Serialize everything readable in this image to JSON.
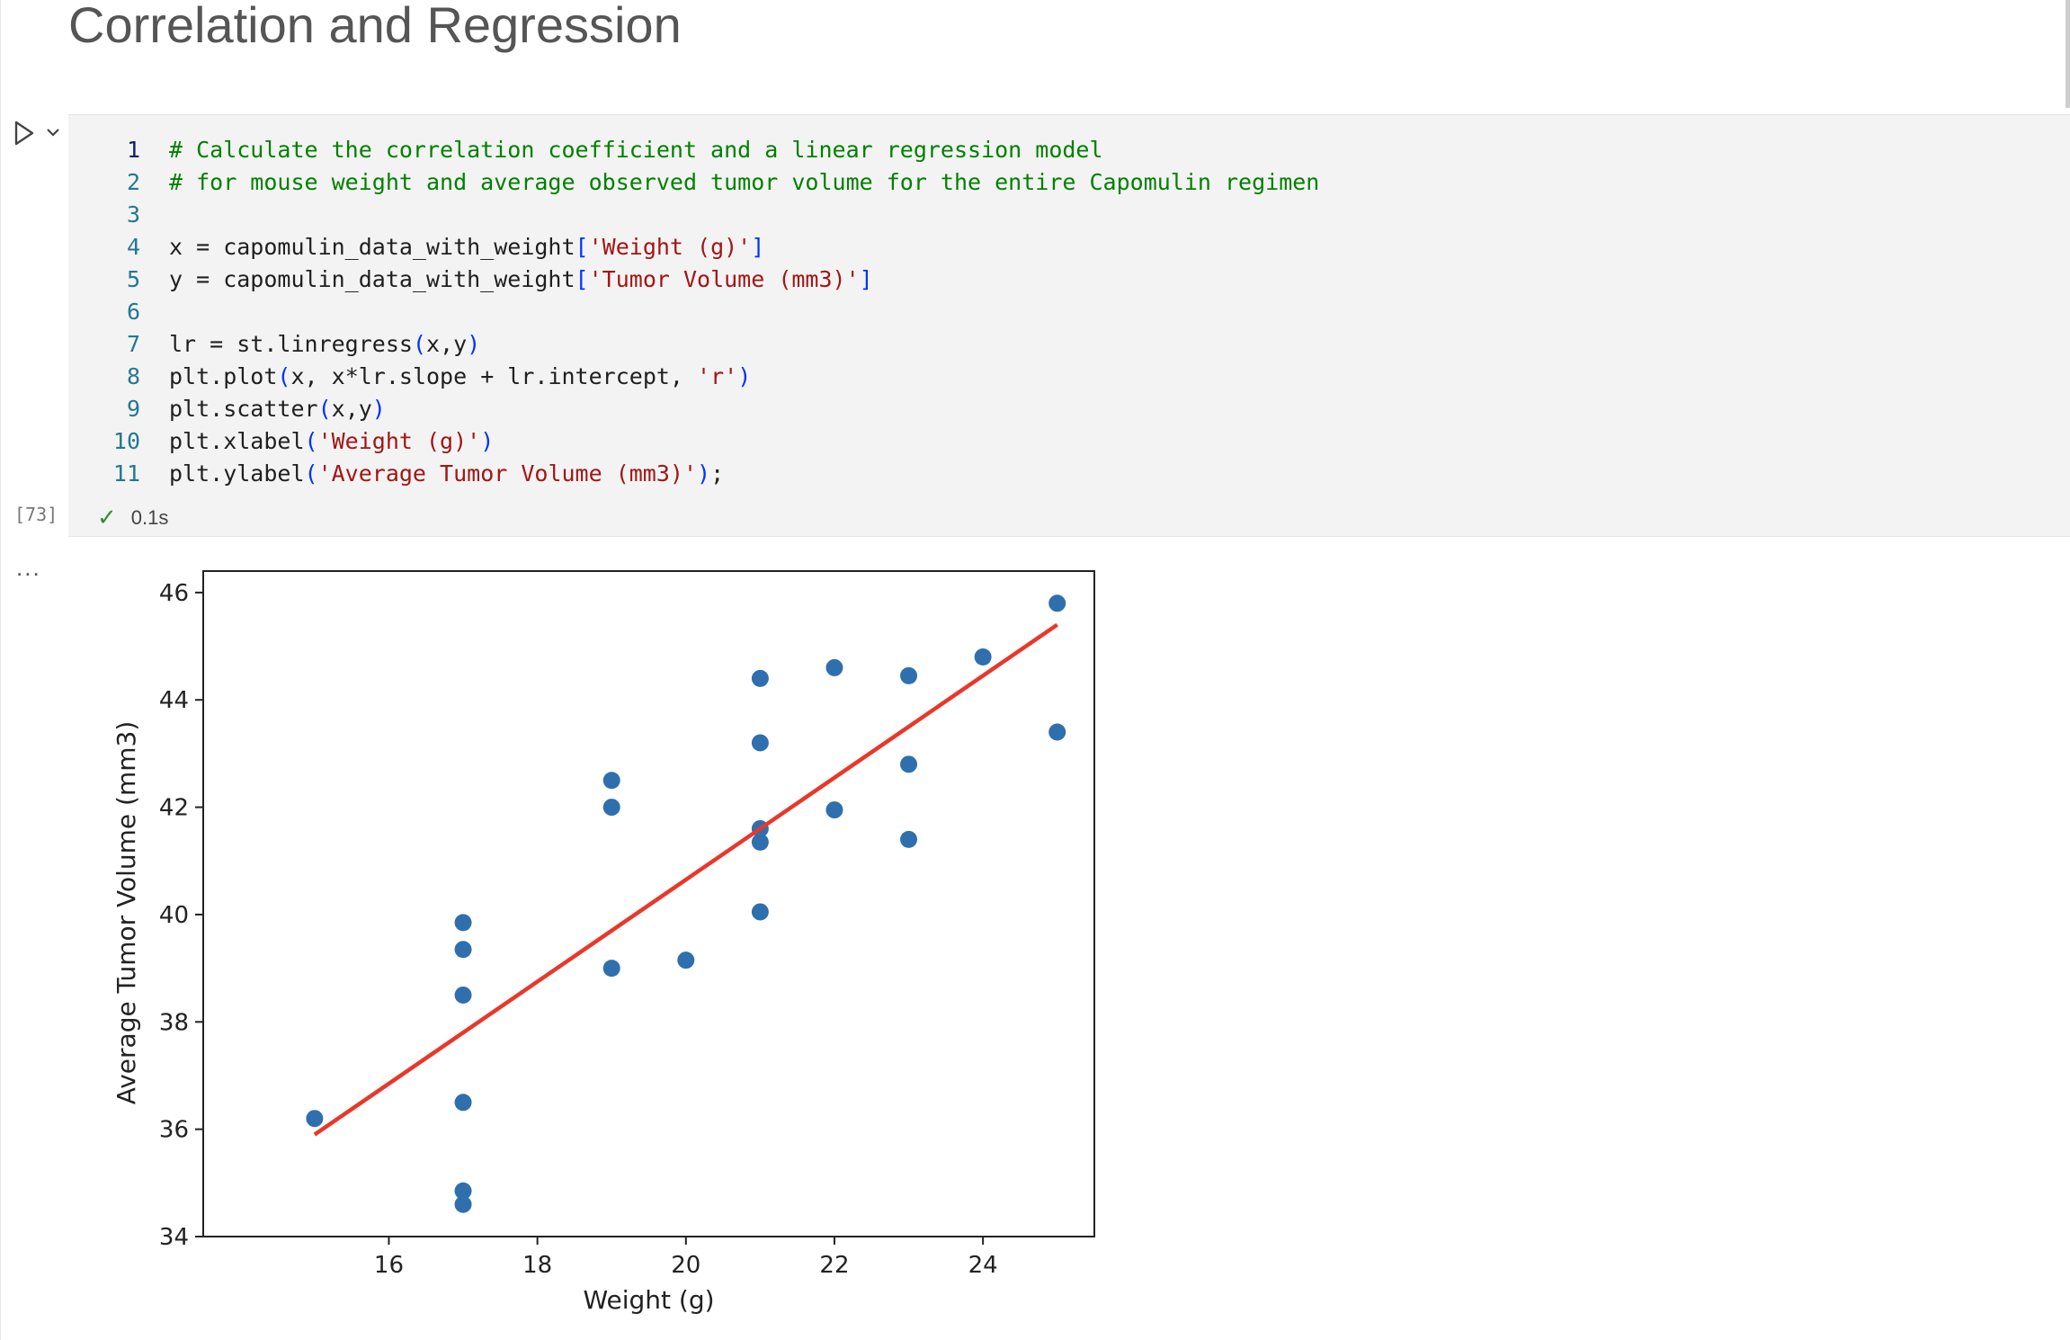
{
  "heading": "Correlation and Regression",
  "cell": {
    "execution_count": "[73]",
    "status_time": "0.1s",
    "lines": [
      {
        "num": "1",
        "active": true,
        "tokens": [
          {
            "t": "# Calculate the correlation coefficient and a linear regression model",
            "c": "comment"
          }
        ]
      },
      {
        "num": "2",
        "tokens": [
          {
            "t": "# for mouse weight and average observed tumor volume for the entire Capomulin regimen",
            "c": "comment"
          }
        ]
      },
      {
        "num": "3",
        "tokens": []
      },
      {
        "num": "4",
        "tokens": [
          {
            "t": "x = capomulin_data_with_weight"
          },
          {
            "t": "[",
            "c": "bracket"
          },
          {
            "t": "'Weight (g)'",
            "c": "string"
          },
          {
            "t": "]",
            "c": "bracket"
          }
        ]
      },
      {
        "num": "5",
        "tokens": [
          {
            "t": "y = capomulin_data_with_weight"
          },
          {
            "t": "[",
            "c": "bracket"
          },
          {
            "t": "'Tumor Volume (mm3)'",
            "c": "string"
          },
          {
            "t": "]",
            "c": "bracket"
          }
        ]
      },
      {
        "num": "6",
        "tokens": []
      },
      {
        "num": "7",
        "tokens": [
          {
            "t": "lr = st.linregress"
          },
          {
            "t": "(",
            "c": "bracket"
          },
          {
            "t": "x,y"
          },
          {
            "t": ")",
            "c": "bracket"
          }
        ]
      },
      {
        "num": "8",
        "tokens": [
          {
            "t": "plt.plot"
          },
          {
            "t": "(",
            "c": "bracket"
          },
          {
            "t": "x, x*lr.slope + lr.intercept, "
          },
          {
            "t": "'r'",
            "c": "string"
          },
          {
            "t": ")",
            "c": "bracket"
          }
        ]
      },
      {
        "num": "9",
        "tokens": [
          {
            "t": "plt.scatter"
          },
          {
            "t": "(",
            "c": "bracket"
          },
          {
            "t": "x,y"
          },
          {
            "t": ")",
            "c": "bracket"
          }
        ]
      },
      {
        "num": "10",
        "tokens": [
          {
            "t": "plt.xlabel"
          },
          {
            "t": "(",
            "c": "bracket"
          },
          {
            "t": "'Weight (g)'",
            "c": "string"
          },
          {
            "t": ")",
            "c": "bracket"
          }
        ]
      },
      {
        "num": "11",
        "tokens": [
          {
            "t": "plt.ylabel"
          },
          {
            "t": "(",
            "c": "bracket"
          },
          {
            "t": "'Average Tumor Volume (mm3)'",
            "c": "string"
          },
          {
            "t": ")",
            "c": "bracket"
          },
          {
            "t": ";"
          }
        ]
      }
    ]
  },
  "output_more": "...",
  "colors": {
    "point": "#2f6fad",
    "regression_line": "#e8382a",
    "comment": "#008000",
    "string": "#a31515",
    "bracket": "#0431fa"
  },
  "chart_data": {
    "type": "scatter",
    "xlabel": "Weight (g)",
    "ylabel": "Average Tumor Volume (mm3)",
    "xlim": [
      13.5,
      25.5
    ],
    "ylim": [
      34,
      46.4
    ],
    "xticks": [
      16,
      18,
      20,
      22,
      24
    ],
    "yticks": [
      34,
      36,
      38,
      40,
      42,
      44,
      46
    ],
    "points": [
      {
        "x": 15,
        "y": 36.2
      },
      {
        "x": 17,
        "y": 34.6
      },
      {
        "x": 17,
        "y": 34.85
      },
      {
        "x": 17,
        "y": 36.5
      },
      {
        "x": 17,
        "y": 38.5
      },
      {
        "x": 17,
        "y": 39.35
      },
      {
        "x": 17,
        "y": 39.85
      },
      {
        "x": 19,
        "y": 39.0
      },
      {
        "x": 19,
        "y": 42.0
      },
      {
        "x": 19,
        "y": 42.5
      },
      {
        "x": 20,
        "y": 39.15
      },
      {
        "x": 21,
        "y": 40.05
      },
      {
        "x": 21,
        "y": 41.35
      },
      {
        "x": 21,
        "y": 41.6
      },
      {
        "x": 21,
        "y": 43.2
      },
      {
        "x": 21,
        "y": 44.4
      },
      {
        "x": 22,
        "y": 41.95
      },
      {
        "x": 22,
        "y": 44.6
      },
      {
        "x": 23,
        "y": 41.4
      },
      {
        "x": 23,
        "y": 42.8
      },
      {
        "x": 23,
        "y": 44.45
      },
      {
        "x": 24,
        "y": 44.8
      },
      {
        "x": 25,
        "y": 43.4
      },
      {
        "x": 25,
        "y": 45.8
      }
    ],
    "regression_line": {
      "x": [
        15,
        25
      ],
      "y": [
        35.9,
        45.4
      ]
    },
    "grid": false,
    "legend": "none"
  }
}
